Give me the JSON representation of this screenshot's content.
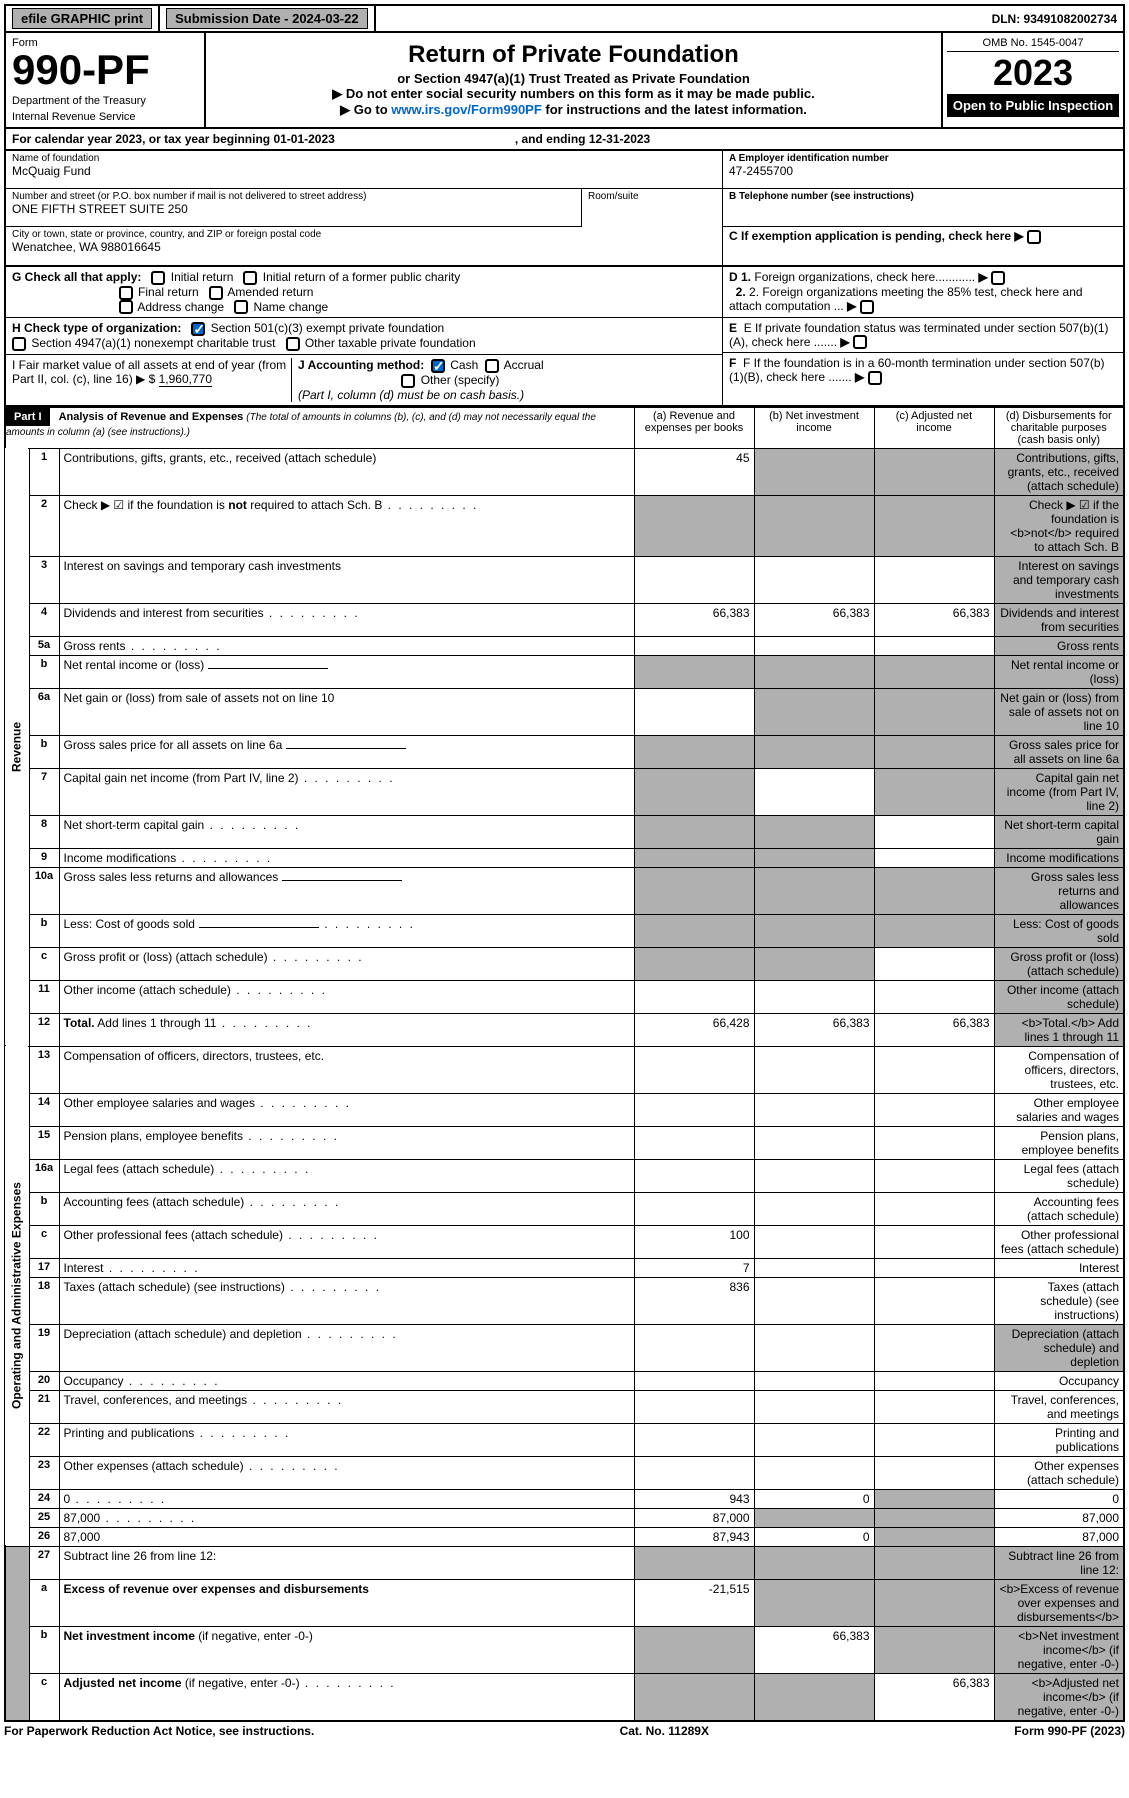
{
  "topbar": {
    "efile": "efile GRAPHIC print",
    "submission_label": "Submission Date - 2024-03-22",
    "dln": "DLN: 93491082002734"
  },
  "header": {
    "form_label": "Form",
    "form_number": "990-PF",
    "dept1": "Department of the Treasury",
    "dept2": "Internal Revenue Service",
    "title": "Return of Private Foundation",
    "subtitle": "or Section 4947(a)(1) Trust Treated as Private Foundation",
    "note1": "▶ Do not enter social security numbers on this form as it may be made public.",
    "note2_pre": "▶ Go to ",
    "note2_link": "www.irs.gov/Form990PF",
    "note2_post": " for instructions and the latest information.",
    "omb": "OMB No. 1545-0047",
    "year": "2023",
    "open": "Open to Public Inspection"
  },
  "calendar": {
    "pre": "For calendar year 2023, or tax year beginning 01-01-2023",
    "mid": ", and ending 12-31-2023"
  },
  "info": {
    "name_label": "Name of foundation",
    "name": "McQuaig Fund",
    "addr_label": "Number and street (or P.O. box number if mail is not delivered to street address)",
    "addr": "ONE FIFTH STREET SUITE 250",
    "room_label": "Room/suite",
    "city_label": "City or town, state or province, country, and ZIP or foreign postal code",
    "city": "Wenatchee, WA  988016645",
    "ein_label": "A Employer identification number",
    "ein": "47-2455700",
    "phone_label": "B Telephone number (see instructions)",
    "c_label": "C If exemption application is pending, check here"
  },
  "checks": {
    "g_label": "G Check all that apply:",
    "g_opts": [
      "Initial return",
      "Initial return of a former public charity",
      "Final return",
      "Amended return",
      "Address change",
      "Name change"
    ],
    "h_label": "H Check type of organization:",
    "h1": "Section 501(c)(3) exempt private foundation",
    "h2": "Section 4947(a)(1) nonexempt charitable trust",
    "h3": "Other taxable private foundation",
    "i_label": "I Fair market value of all assets at end of year (from Part II, col. (c), line 16) ▶ $",
    "i_val": "1,960,770",
    "j_label": "J Accounting method:",
    "j_cash": "Cash",
    "j_accrual": "Accrual",
    "j_other": "Other (specify)",
    "j_note": "(Part I, column (d) must be on cash basis.)",
    "d1": "D 1. Foreign organizations, check here............",
    "d2": "2. Foreign organizations meeting the 85% test, check here and attach computation ...",
    "e": "E  If private foundation status was terminated under section 507(b)(1)(A), check here .......",
    "f": "F  If the foundation is in a 60-month termination under section 507(b)(1)(B), check here ......."
  },
  "part1": {
    "label": "Part I",
    "title": "Analysis of Revenue and Expenses",
    "title_note": "(The total of amounts in columns (b), (c), and (d) may not necessarily equal the amounts in column (a) (see instructions).)",
    "col_a": "(a)  Revenue and expenses per books",
    "col_b": "(b)  Net investment income",
    "col_c": "(c)  Adjusted net income",
    "col_d": "(d)  Disbursements for charitable purposes (cash basis only)"
  },
  "section_labels": {
    "revenue": "Revenue",
    "expenses": "Operating and Administrative Expenses"
  },
  "rows": [
    {
      "n": "1",
      "d": "Contributions, gifts, grants, etc., received (attach schedule)",
      "a": "45",
      "b_sh": true,
      "c_sh": true,
      "d_sh": true
    },
    {
      "n": "2",
      "d": "Check ▶ ☑ if the foundation is <b>not</b> required to attach Sch. B",
      "a_sh": true,
      "b_sh": true,
      "c_sh": true,
      "d_sh": true,
      "html": true,
      "dots": true
    },
    {
      "n": "3",
      "d": "Interest on savings and temporary cash investments",
      "d_sh": true
    },
    {
      "n": "4",
      "d": "Dividends and interest from securities",
      "a": "66,383",
      "b": "66,383",
      "c": "66,383",
      "d_sh": true,
      "dots": true
    },
    {
      "n": "5a",
      "d": "Gross rents",
      "d_sh": true,
      "dots": true
    },
    {
      "n": "b",
      "d": "Net rental income or (loss)",
      "a_sh": true,
      "b_sh": true,
      "c_sh": true,
      "d_sh": true,
      "underline_box": true
    },
    {
      "n": "6a",
      "d": "Net gain or (loss) from sale of assets not on line 10",
      "b_sh": true,
      "c_sh": true,
      "d_sh": true
    },
    {
      "n": "b",
      "d": "Gross sales price for all assets on line 6a",
      "a_sh": true,
      "b_sh": true,
      "c_sh": true,
      "d_sh": true,
      "underline_box": true
    },
    {
      "n": "7",
      "d": "Capital gain net income (from Part IV, line 2)",
      "a_sh": true,
      "c_sh": true,
      "d_sh": true,
      "dots": true
    },
    {
      "n": "8",
      "d": "Net short-term capital gain",
      "a_sh": true,
      "b_sh": true,
      "d_sh": true,
      "dots": true
    },
    {
      "n": "9",
      "d": "Income modifications",
      "a_sh": true,
      "b_sh": true,
      "d_sh": true,
      "dots": true
    },
    {
      "n": "10a",
      "d": "Gross sales less returns and allowances",
      "a_sh": true,
      "b_sh": true,
      "c_sh": true,
      "d_sh": true,
      "underline_box": true
    },
    {
      "n": "b",
      "d": "Less: Cost of goods sold",
      "a_sh": true,
      "b_sh": true,
      "c_sh": true,
      "d_sh": true,
      "underline_box": true,
      "dots": true
    },
    {
      "n": "c",
      "d": "Gross profit or (loss) (attach schedule)",
      "a_sh": true,
      "b_sh": true,
      "d_sh": true,
      "dots": true
    },
    {
      "n": "11",
      "d": "Other income (attach schedule)",
      "d_sh": true,
      "dots": true
    },
    {
      "n": "12",
      "d": "<b>Total.</b> Add lines 1 through 11",
      "a": "66,428",
      "b": "66,383",
      "c": "66,383",
      "d_sh": true,
      "html": true,
      "dots": true
    }
  ],
  "exp_rows": [
    {
      "n": "13",
      "d": "Compensation of officers, directors, trustees, etc."
    },
    {
      "n": "14",
      "d": "Other employee salaries and wages",
      "dots": true
    },
    {
      "n": "15",
      "d": "Pension plans, employee benefits",
      "dots": true
    },
    {
      "n": "16a",
      "d": "Legal fees (attach schedule)",
      "dots": true
    },
    {
      "n": "b",
      "d": "Accounting fees (attach schedule)",
      "dots": true
    },
    {
      "n": "c",
      "d": "Other professional fees (attach schedule)",
      "a": "100",
      "dots": true
    },
    {
      "n": "17",
      "d": "Interest",
      "a": "7",
      "dots": true
    },
    {
      "n": "18",
      "d": "Taxes (attach schedule) (see instructions)",
      "a": "836",
      "dots": true
    },
    {
      "n": "19",
      "d": "Depreciation (attach schedule) and depletion",
      "d_sh": true,
      "dots": true
    },
    {
      "n": "20",
      "d": "Occupancy",
      "dots": true
    },
    {
      "n": "21",
      "d": "Travel, conferences, and meetings",
      "dots": true
    },
    {
      "n": "22",
      "d": "Printing and publications",
      "dots": true
    },
    {
      "n": "23",
      "d": "Other expenses (attach schedule)",
      "dots": true
    },
    {
      "n": "24",
      "d": "0",
      "a": "943",
      "b": "0",
      "c_sh": true,
      "html": true,
      "dots": true
    },
    {
      "n": "25",
      "d": "87,000",
      "a": "87,000",
      "b_sh": true,
      "c_sh": true,
      "dots": true
    },
    {
      "n": "26",
      "d": "87,000",
      "a": "87,943",
      "b": "0",
      "c_sh": true,
      "html": true
    }
  ],
  "net_rows": [
    {
      "n": "27",
      "d": "Subtract line 26 from line 12:",
      "a_sh": true,
      "b_sh": true,
      "c_sh": true,
      "d_sh": true
    },
    {
      "n": "a",
      "d": "<b>Excess of revenue over expenses and disbursements</b>",
      "a": "-21,515",
      "b_sh": true,
      "c_sh": true,
      "d_sh": true,
      "html": true
    },
    {
      "n": "b",
      "d": "<b>Net investment income</b> (if negative, enter -0-)",
      "a_sh": true,
      "b": "66,383",
      "c_sh": true,
      "d_sh": true,
      "html": true
    },
    {
      "n": "c",
      "d": "<b>Adjusted net income</b> (if negative, enter -0-)",
      "a_sh": true,
      "b_sh": true,
      "c": "66,383",
      "d_sh": true,
      "html": true,
      "dots": true
    }
  ],
  "footer": {
    "left": "For Paperwork Reduction Act Notice, see instructions.",
    "mid": "Cat. No. 11289X",
    "right": "Form 990-PF (2023)"
  },
  "colors": {
    "shaded": "#b0b0b0",
    "link": "#0066cc"
  }
}
